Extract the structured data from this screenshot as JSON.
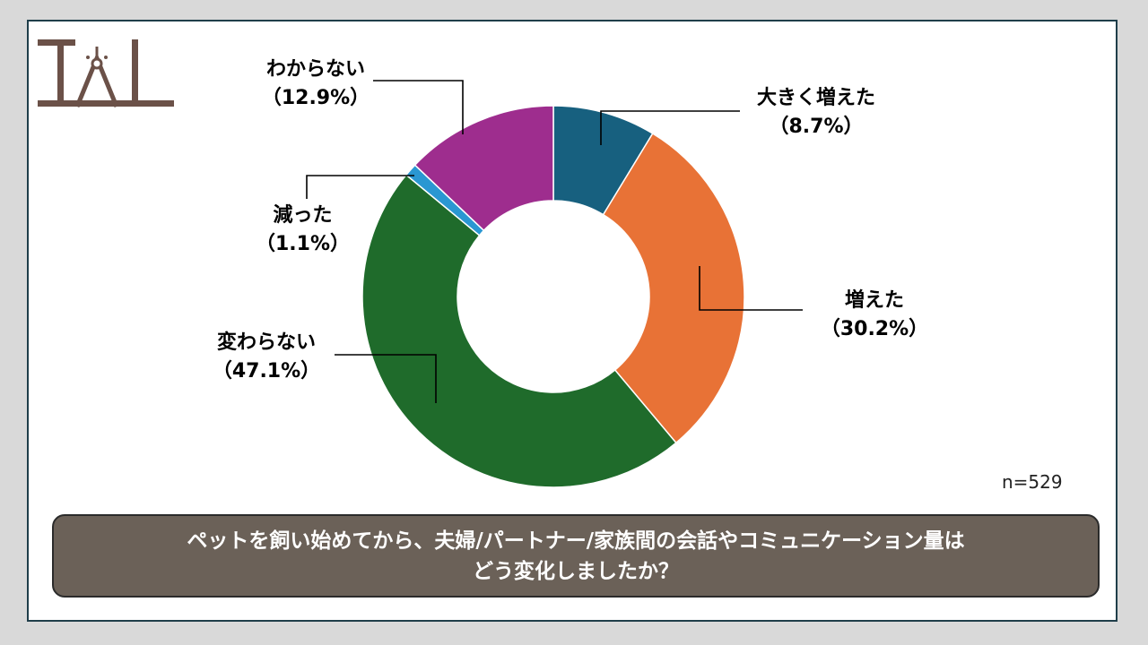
{
  "chart_data": {
    "type": "pie",
    "donut": true,
    "categories": [
      "大きく増えた",
      "増えた",
      "変わらない",
      "減った",
      "わからない"
    ],
    "values": [
      8.7,
      30.2,
      47.1,
      1.1,
      12.9
    ],
    "value_labels": [
      "（8.7%）",
      "（30.2%）",
      "（47.1%）",
      "（1.1%）",
      "（12.9%）"
    ],
    "colors": [
      "#17607f",
      "#e87236",
      "#1f6b2b",
      "#2a97d2",
      "#9e2d8e"
    ],
    "sample_note": "n=529"
  },
  "question": {
    "line1": "ペットを飼い始めてから、夫婦/パートナー/家族間の会話やコミュニケーション量は",
    "line2": "どう変化しましたか？"
  },
  "logo": {
    "text": "TAL",
    "color": "#6b5148"
  }
}
